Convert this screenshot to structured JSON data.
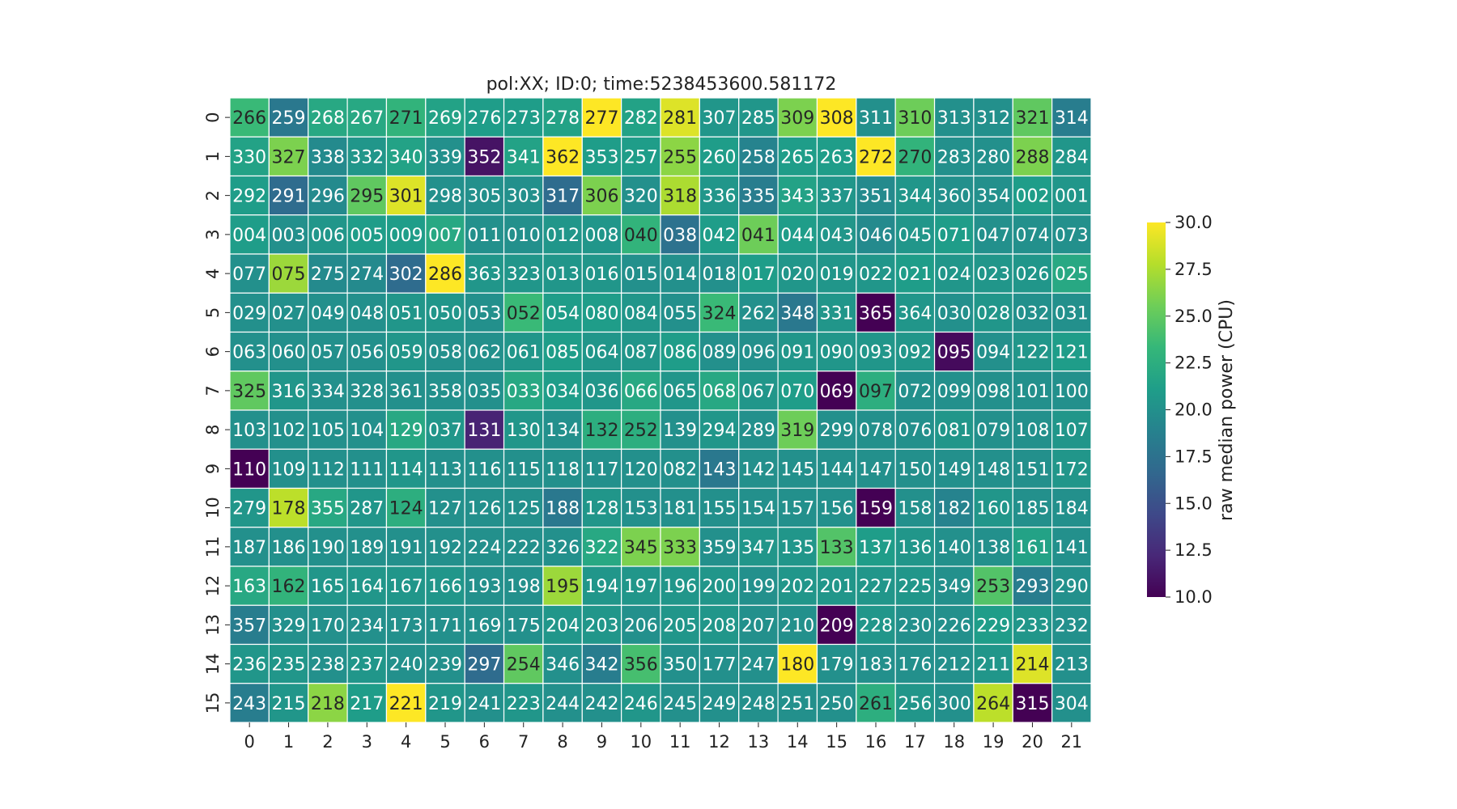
{
  "chart_data": {
    "type": "heatmap",
    "title": "pol:XX; ID:0; time:5238453600.581172",
    "xlabel": "",
    "ylabel": "",
    "x_tick_labels": [
      "0",
      "1",
      "2",
      "3",
      "4",
      "5",
      "6",
      "7",
      "8",
      "9",
      "10",
      "11",
      "12",
      "13",
      "14",
      "15",
      "16",
      "17",
      "18",
      "19",
      "20",
      "21"
    ],
    "y_tick_labels": [
      "0",
      "1",
      "2",
      "3",
      "4",
      "5",
      "6",
      "7",
      "8",
      "9",
      "10",
      "11",
      "12",
      "13",
      "14",
      "15"
    ],
    "colorbar": {
      "label": "raw median power (CPU)",
      "range": [
        10.0,
        30.0
      ],
      "ticks": [
        "10.0",
        "12.5",
        "15.0",
        "17.5",
        "20.0",
        "22.5",
        "25.0",
        "27.5",
        "30.0"
      ],
      "colormap": "viridis"
    },
    "annotations": [
      [
        "266",
        "259",
        "268",
        "267",
        "271",
        "269",
        "276",
        "273",
        "278",
        "277",
        "282",
        "281",
        "307",
        "285",
        "309",
        "308",
        "311",
        "310",
        "313",
        "312",
        "321",
        "314"
      ],
      [
        "330",
        "327",
        "338",
        "332",
        "340",
        "339",
        "352",
        "341",
        "362",
        "353",
        "257",
        "255",
        "260",
        "258",
        "265",
        "263",
        "272",
        "270",
        "283",
        "280",
        "288",
        "284"
      ],
      [
        "292",
        "291",
        "296",
        "295",
        "301",
        "298",
        "305",
        "303",
        "317",
        "306",
        "320",
        "318",
        "336",
        "335",
        "343",
        "337",
        "351",
        "344",
        "360",
        "354",
        "002",
        "001"
      ],
      [
        "004",
        "003",
        "006",
        "005",
        "009",
        "007",
        "011",
        "010",
        "012",
        "008",
        "040",
        "038",
        "042",
        "041",
        "044",
        "043",
        "046",
        "045",
        "071",
        "047",
        "074",
        "073"
      ],
      [
        "077",
        "075",
        "275",
        "274",
        "302",
        "286",
        "363",
        "323",
        "013",
        "016",
        "015",
        "014",
        "018",
        "017",
        "020",
        "019",
        "022",
        "021",
        "024",
        "023",
        "026",
        "025"
      ],
      [
        "029",
        "027",
        "049",
        "048",
        "051",
        "050",
        "053",
        "052",
        "054",
        "080",
        "084",
        "055",
        "324",
        "262",
        "348",
        "331",
        "365",
        "364",
        "030",
        "028",
        "032",
        "031"
      ],
      [
        "063",
        "060",
        "057",
        "056",
        "059",
        "058",
        "062",
        "061",
        "085",
        "064",
        "087",
        "086",
        "089",
        "096",
        "091",
        "090",
        "093",
        "092",
        "095",
        "094",
        "122",
        "121"
      ],
      [
        "325",
        "316",
        "334",
        "328",
        "361",
        "358",
        "035",
        "033",
        "034",
        "036",
        "066",
        "065",
        "068",
        "067",
        "070",
        "069",
        "097",
        "072",
        "099",
        "098",
        "101",
        "100"
      ],
      [
        "103",
        "102",
        "105",
        "104",
        "129",
        "037",
        "131",
        "130",
        "134",
        "132",
        "252",
        "139",
        "294",
        "289",
        "319",
        "299",
        "078",
        "076",
        "081",
        "079",
        "108",
        "107"
      ],
      [
        "110",
        "109",
        "112",
        "111",
        "114",
        "113",
        "116",
        "115",
        "118",
        "117",
        "120",
        "082",
        "143",
        "142",
        "145",
        "144",
        "147",
        "150",
        "149",
        "148",
        "151",
        "172"
      ],
      [
        "279",
        "178",
        "355",
        "287",
        "124",
        "127",
        "126",
        "125",
        "188",
        "128",
        "153",
        "181",
        "155",
        "154",
        "157",
        "156",
        "159",
        "158",
        "182",
        "160",
        "185",
        "184"
      ],
      [
        "187",
        "186",
        "190",
        "189",
        "191",
        "192",
        "224",
        "222",
        "326",
        "322",
        "345",
        "333",
        "359",
        "347",
        "135",
        "133",
        "137",
        "136",
        "140",
        "138",
        "161",
        "141"
      ],
      [
        "163",
        "162",
        "165",
        "164",
        "167",
        "166",
        "193",
        "198",
        "195",
        "194",
        "197",
        "196",
        "200",
        "199",
        "202",
        "201",
        "227",
        "225",
        "349",
        "253",
        "293",
        "290"
      ],
      [
        "357",
        "329",
        "170",
        "234",
        "173",
        "171",
        "169",
        "175",
        "204",
        "203",
        "206",
        "205",
        "208",
        "207",
        "210",
        "209",
        "228",
        "230",
        "226",
        "229",
        "233",
        "232"
      ],
      [
        "236",
        "235",
        "238",
        "237",
        "240",
        "239",
        "297",
        "254",
        "346",
        "342",
        "356",
        "350",
        "177",
        "247",
        "180",
        "179",
        "183",
        "176",
        "212",
        "211",
        "214",
        "213"
      ],
      [
        "243",
        "215",
        "218",
        "217",
        "221",
        "219",
        "241",
        "223",
        "244",
        "242",
        "246",
        "245",
        "249",
        "248",
        "251",
        "250",
        "261",
        "256",
        "300",
        "264",
        "315",
        "304"
      ]
    ],
    "values": [
      [
        23.5,
        18.0,
        22.0,
        22.0,
        23.0,
        21.5,
        21.0,
        21.0,
        21.5,
        30.0,
        21.5,
        29.0,
        20.5,
        20.5,
        26.0,
        30.0,
        20.0,
        25.5,
        20.0,
        20.0,
        25.0,
        18.5
      ],
      [
        21.5,
        26.0,
        19.5,
        20.5,
        21.5,
        20.0,
        11.0,
        21.5,
        30.0,
        21.0,
        21.0,
        26.5,
        21.0,
        19.0,
        21.0,
        21.0,
        30.0,
        23.0,
        20.0,
        20.0,
        26.0,
        20.5
      ],
      [
        21.0,
        17.0,
        19.5,
        25.0,
        29.0,
        20.0,
        20.0,
        20.0,
        17.0,
        26.0,
        20.0,
        27.5,
        20.5,
        18.5,
        21.5,
        20.5,
        19.5,
        20.5,
        20.0,
        20.0,
        21.0,
        20.5
      ],
      [
        21.0,
        20.0,
        20.5,
        21.0,
        21.0,
        22.0,
        20.0,
        20.0,
        20.5,
        20.5,
        23.0,
        17.5,
        21.0,
        25.5,
        21.0,
        20.5,
        19.5,
        20.5,
        21.0,
        20.0,
        20.0,
        20.0
      ],
      [
        20.0,
        27.0,
        19.5,
        19.5,
        17.0,
        30.0,
        20.5,
        20.5,
        20.5,
        20.5,
        20.0,
        20.0,
        20.0,
        21.0,
        20.5,
        20.5,
        20.5,
        21.0,
        20.5,
        20.5,
        20.5,
        22.0
      ],
      [
        20.0,
        20.0,
        20.0,
        20.0,
        20.5,
        20.5,
        20.0,
        23.5,
        21.0,
        21.0,
        20.5,
        20.0,
        23.5,
        20.0,
        18.0,
        20.5,
        10.0,
        20.5,
        20.0,
        20.5,
        20.0,
        20.0
      ],
      [
        20.0,
        20.0,
        20.0,
        20.0,
        20.5,
        20.0,
        20.0,
        20.5,
        21.0,
        20.5,
        20.5,
        21.0,
        20.0,
        20.0,
        20.5,
        20.5,
        20.5,
        20.5,
        10.5,
        20.0,
        20.5,
        21.0
      ],
      [
        25.0,
        20.5,
        20.0,
        20.0,
        20.0,
        20.0,
        20.0,
        22.0,
        21.0,
        20.5,
        22.0,
        20.5,
        22.0,
        20.5,
        21.0,
        10.0,
        22.5,
        20.0,
        20.0,
        20.0,
        20.0,
        20.0
      ],
      [
        20.0,
        20.0,
        20.0,
        20.0,
        22.0,
        20.5,
        12.0,
        20.5,
        20.0,
        22.5,
        22.5,
        20.0,
        20.5,
        20.0,
        25.5,
        20.0,
        20.0,
        20.0,
        20.5,
        20.0,
        20.0,
        20.5
      ],
      [
        10.0,
        20.0,
        20.0,
        20.0,
        20.5,
        20.0,
        20.0,
        20.0,
        20.0,
        20.0,
        20.0,
        20.0,
        18.0,
        20.0,
        20.0,
        20.0,
        20.0,
        20.0,
        20.0,
        20.0,
        20.0,
        20.5
      ],
      [
        20.5,
        28.0,
        22.0,
        20.5,
        22.5,
        20.0,
        20.0,
        20.0,
        18.0,
        20.5,
        20.0,
        20.0,
        20.0,
        20.0,
        20.0,
        20.0,
        10.0,
        20.0,
        19.0,
        20.5,
        20.0,
        20.0
      ],
      [
        20.0,
        20.0,
        20.0,
        20.0,
        20.0,
        20.0,
        20.0,
        20.0,
        20.0,
        22.0,
        26.0,
        26.0,
        20.0,
        20.5,
        20.5,
        24.5,
        21.0,
        20.5,
        20.0,
        20.0,
        21.5,
        20.0
      ],
      [
        22.0,
        23.0,
        20.5,
        20.5,
        20.5,
        20.5,
        20.0,
        20.0,
        27.0,
        20.5,
        20.5,
        20.5,
        20.5,
        20.0,
        20.5,
        20.5,
        20.5,
        20.5,
        20.0,
        24.5,
        18.5,
        20.0
      ],
      [
        18.5,
        20.0,
        20.0,
        20.0,
        20.0,
        20.0,
        20.0,
        20.0,
        20.5,
        20.5,
        20.0,
        20.5,
        20.5,
        20.0,
        20.0,
        10.0,
        20.5,
        20.0,
        20.0,
        21.0,
        20.5,
        20.0
      ],
      [
        20.5,
        20.5,
        20.0,
        20.5,
        20.0,
        20.0,
        17.0,
        25.0,
        20.0,
        18.5,
        24.0,
        20.0,
        20.0,
        20.0,
        30.0,
        20.0,
        20.0,
        20.0,
        20.0,
        20.5,
        29.0,
        20.0
      ],
      [
        18.5,
        20.5,
        26.5,
        21.0,
        30.0,
        20.5,
        20.0,
        20.5,
        20.0,
        20.0,
        20.5,
        20.0,
        20.0,
        20.0,
        20.0,
        20.0,
        22.5,
        20.5,
        20.0,
        28.0,
        10.0,
        20.0
      ]
    ]
  }
}
